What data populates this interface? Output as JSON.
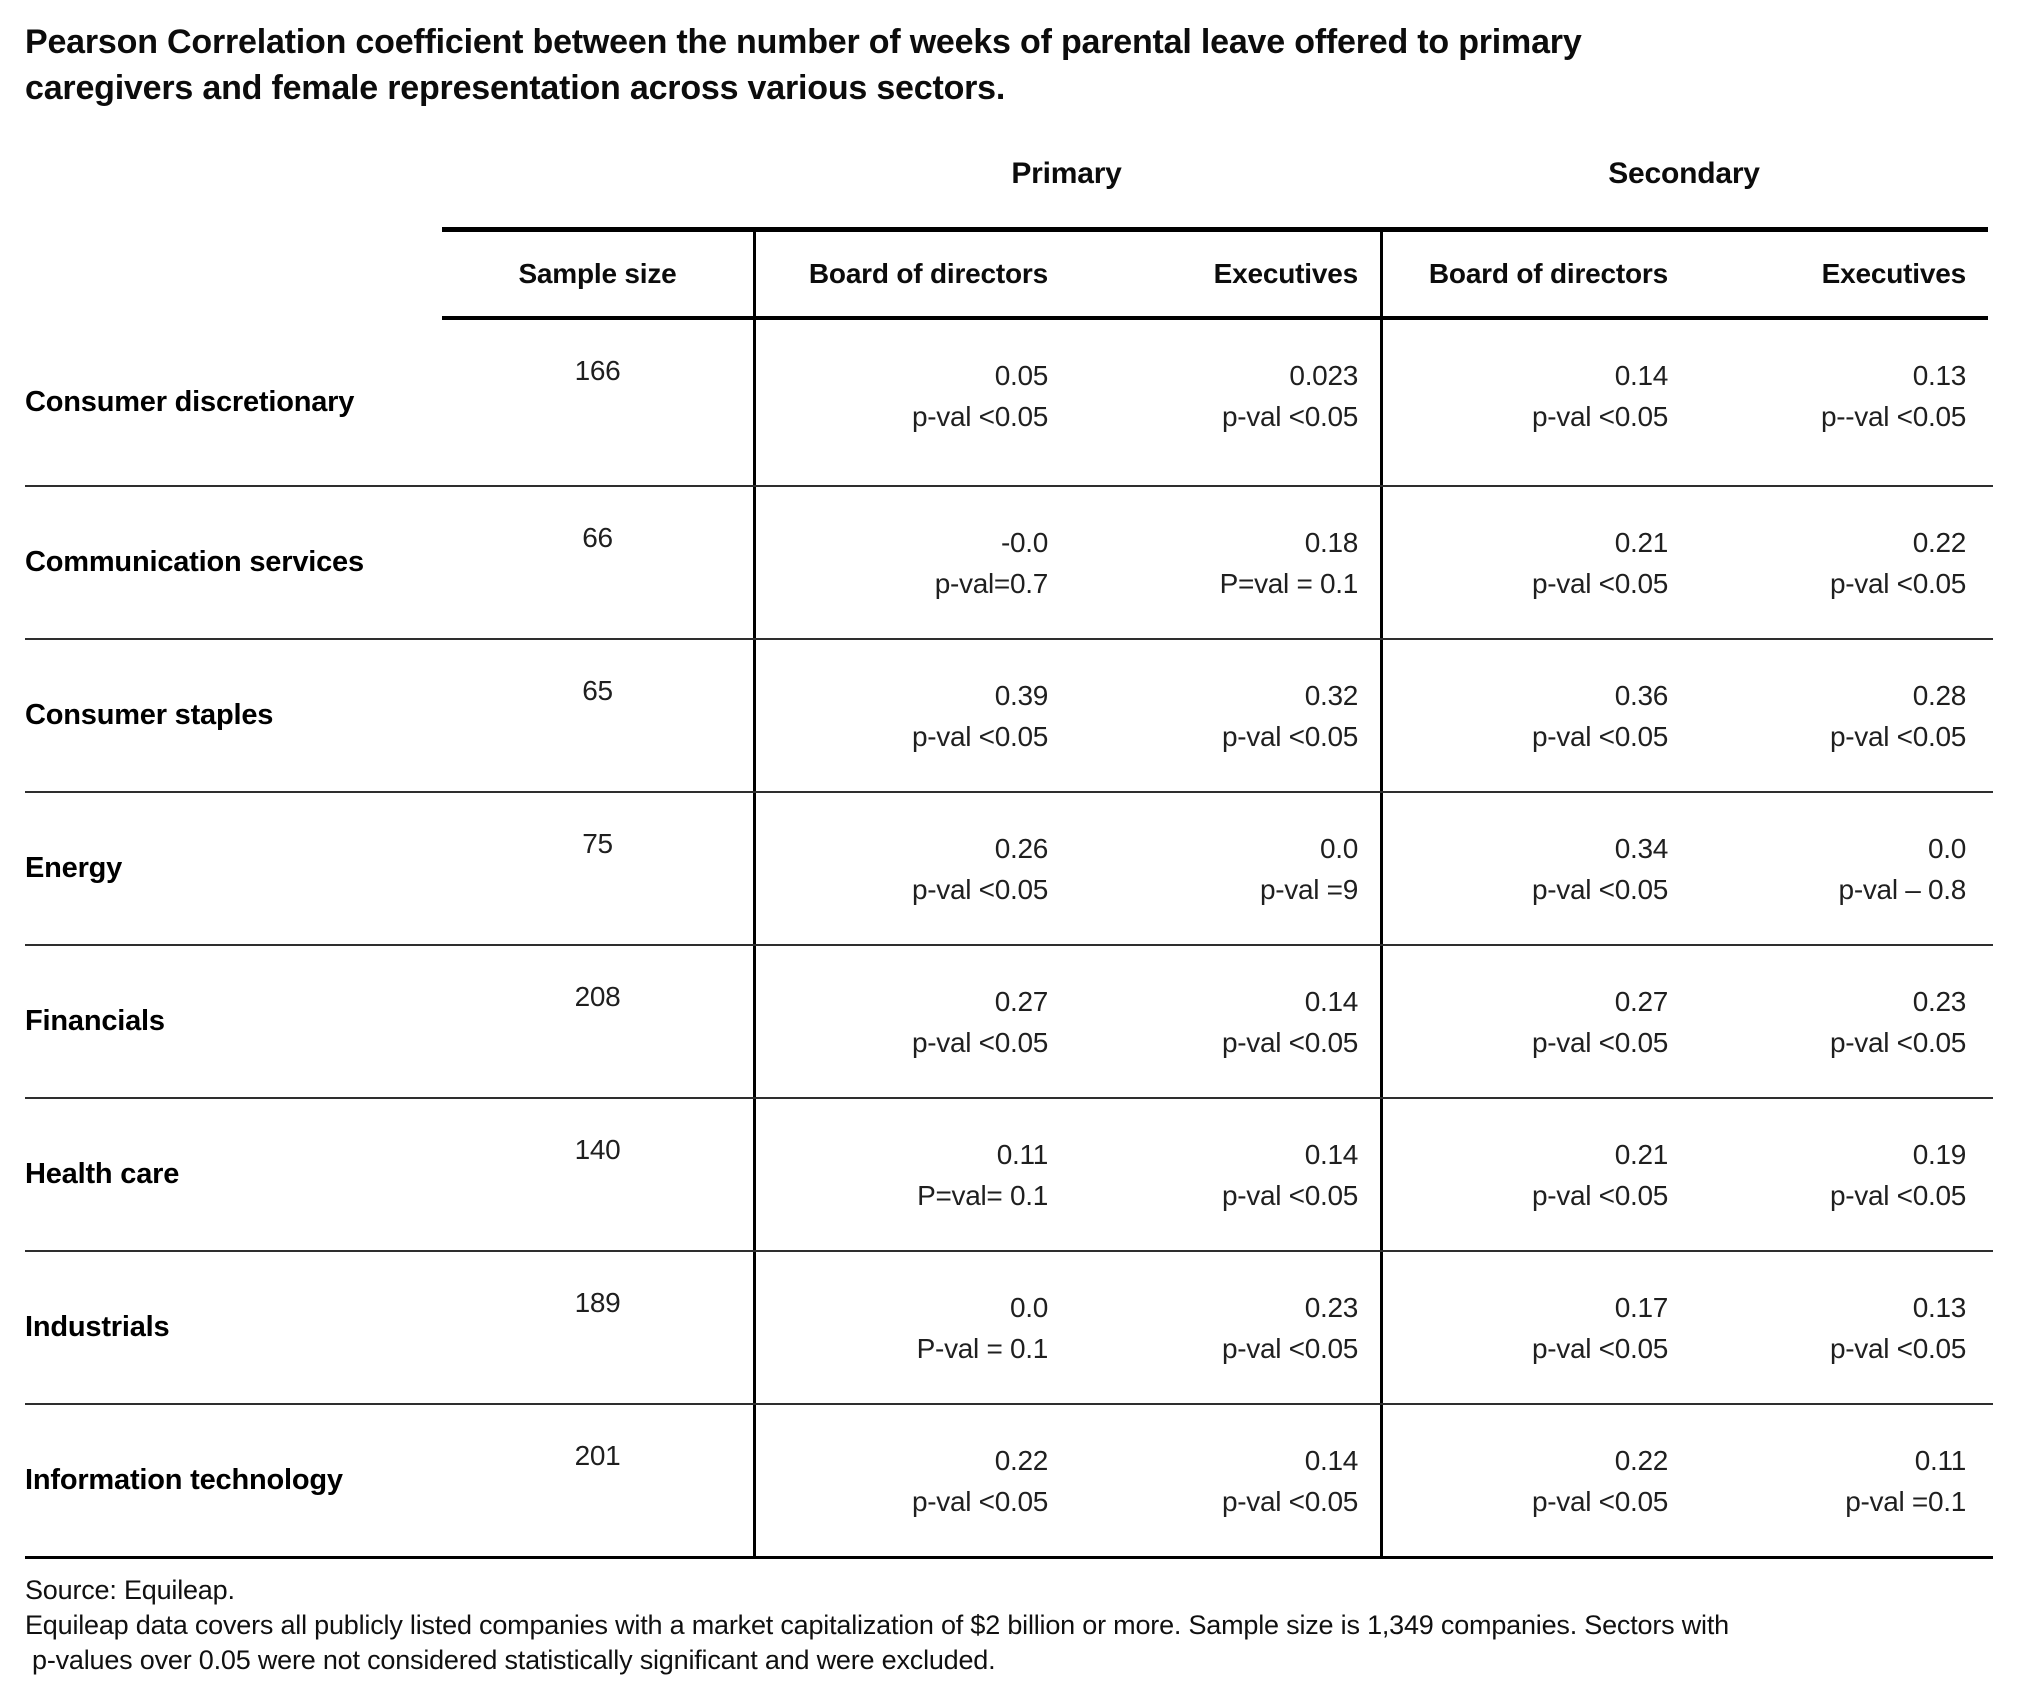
{
  "display": {
    "title_line1": "Pearson Correlation coefficient between the number of weeks of parental leave offered to primary",
    "title_line2": "caregivers and female representation across various sectors."
  },
  "chart_data": {
    "type": "table",
    "title": "Pearson Correlation coefficient between the number of weeks of parental leave offered to primary caregivers and female representation across various sectors.",
    "groups": [
      "Primary",
      "Secondary"
    ],
    "columns": [
      "Sample size",
      "Board of directors",
      "Executives",
      "Board of directors",
      "Executives"
    ],
    "rows": [
      {
        "sector": "Consumer discretionary",
        "sample_size": "166",
        "primary_board": {
          "r": "0.05",
          "p": "p-val <0.05"
        },
        "primary_executives": {
          "r": "0.023",
          "p": "p-val <0.05"
        },
        "secondary_board": {
          "r": "0.14",
          "p": "p-val <0.05"
        },
        "secondary_executives": {
          "r": "0.13",
          "p": "p--val <0.05"
        }
      },
      {
        "sector": "Communication services",
        "sample_size": "66",
        "primary_board": {
          "r": "-0.0",
          "p": "p-val=0.7"
        },
        "primary_executives": {
          "r": "0.18",
          "p": "P=val = 0.1"
        },
        "secondary_board": {
          "r": "0.21",
          "p": "p-val <0.05"
        },
        "secondary_executives": {
          "r": "0.22",
          "p": "p-val <0.05"
        }
      },
      {
        "sector": "Consumer staples",
        "sample_size": "65",
        "primary_board": {
          "r": "0.39",
          "p": "p-val <0.05"
        },
        "primary_executives": {
          "r": "0.32",
          "p": "p-val <0.05"
        },
        "secondary_board": {
          "r": "0.36",
          "p": "p-val <0.05"
        },
        "secondary_executives": {
          "r": "0.28",
          "p": "p-val <0.05"
        }
      },
      {
        "sector": "Energy",
        "sample_size": "75",
        "primary_board": {
          "r": "0.26",
          "p": "p-val <0.05"
        },
        "primary_executives": {
          "r": "0.0",
          "p": "p-val =9"
        },
        "secondary_board": {
          "r": "0.34",
          "p": "p-val <0.05"
        },
        "secondary_executives": {
          "r": "0.0",
          "p": "p-val – 0.8"
        }
      },
      {
        "sector": "Financials",
        "sample_size": "208",
        "primary_board": {
          "r": "0.27",
          "p": "p-val <0.05"
        },
        "primary_executives": {
          "r": "0.14",
          "p": "p-val <0.05"
        },
        "secondary_board": {
          "r": "0.27",
          "p": "p-val <0.05"
        },
        "secondary_executives": {
          "r": "0.23",
          "p": "p-val <0.05"
        }
      },
      {
        "sector": "Health care",
        "sample_size": "140",
        "primary_board": {
          "r": "0.11",
          "p": "P=val= 0.1"
        },
        "primary_executives": {
          "r": "0.14",
          "p": "p-val <0.05"
        },
        "secondary_board": {
          "r": "0.21",
          "p": "p-val <0.05"
        },
        "secondary_executives": {
          "r": "0.19",
          "p": "p-val <0.05"
        }
      },
      {
        "sector": "Industrials",
        "sample_size": "189",
        "primary_board": {
          "r": "0.0",
          "p": "P-val = 0.1"
        },
        "primary_executives": {
          "r": "0.23",
          "p": "p-val <0.05"
        },
        "secondary_board": {
          "r": "0.17",
          "p": "p-val <0.05"
        },
        "secondary_executives": {
          "r": "0.13",
          "p": "p-val <0.05"
        }
      },
      {
        "sector": "Information technology",
        "sample_size": "201",
        "primary_board": {
          "r": "0.22",
          "p": "p-val <0.05"
        },
        "primary_executives": {
          "r": "0.14",
          "p": "p-val <0.05"
        },
        "secondary_board": {
          "r": "0.22",
          "p": "p-val <0.05"
        },
        "secondary_executives": {
          "r": "0.11",
          "p": "p-val =0.1"
        }
      }
    ]
  },
  "footer": {
    "source": "Source: Equileap.",
    "note_line1": "Equileap data covers all publicly listed companies with a market capitalization of $2 billion or more. Sample size is 1,349 companies. Sectors with",
    "note_line2": "p-values over 0.05 were not considered statistically significant and were excluded."
  },
  "colors": {
    "text": "#1a1a1a",
    "rule": "#000000",
    "row_separator": "#2e2e2e",
    "background": "#ffffff"
  }
}
